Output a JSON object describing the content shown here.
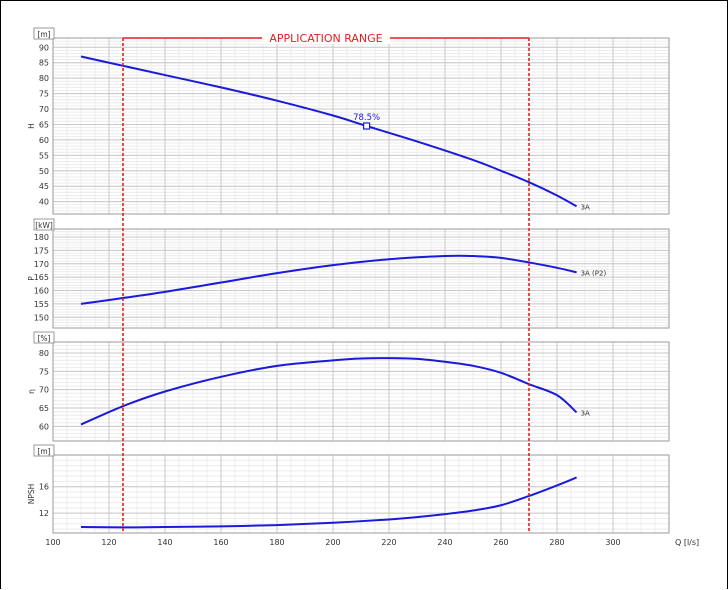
{
  "annotations": {
    "application_range_label": "APPLICATION RANGE",
    "best_efficiency_label": "78.5%",
    "application_range_q": [
      125,
      270
    ],
    "best_efficiency_point": {
      "q": 212,
      "h": 64.5
    }
  },
  "colors": {
    "curve": "#1a1adb",
    "range": "#e02020",
    "grid_major": "#c8c8c8",
    "grid_minor": "#ececec",
    "axis_text": "#333333"
  },
  "x_axis": {
    "label": "Q [l/s]",
    "min": 100,
    "max": 320,
    "ticks": [
      100,
      120,
      140,
      160,
      180,
      200,
      220,
      240,
      260,
      280,
      300
    ]
  },
  "chart_data": [
    {
      "type": "line",
      "panel": "head",
      "unit": "[m]",
      "ylabel": "H",
      "ylim": [
        36,
        93
      ],
      "yticks": [
        40,
        45,
        50,
        55,
        60,
        65,
        70,
        75,
        80,
        85,
        90
      ],
      "series": [
        {
          "name": "3A",
          "x": [
            110,
            125,
            140,
            160,
            180,
            200,
            212,
            230,
            250,
            260,
            270,
            280,
            287
          ],
          "y": [
            87,
            84,
            81,
            77,
            72.7,
            67.9,
            64.5,
            59.5,
            53.5,
            50.0,
            46.3,
            42.0,
            38.5
          ]
        }
      ]
    },
    {
      "type": "line",
      "panel": "power",
      "unit": "[kW]",
      "ylabel": "P",
      "ylim": [
        146,
        183
      ],
      "yticks": [
        150,
        155,
        160,
        165,
        170,
        175,
        180
      ],
      "series": [
        {
          "name": "3A (P2)",
          "x": [
            110,
            125,
            140,
            160,
            180,
            200,
            220,
            240,
            250,
            260,
            270,
            280,
            287
          ],
          "y": [
            155,
            157.2,
            159.5,
            163.0,
            166.5,
            169.5,
            171.7,
            172.9,
            172.9,
            172.2,
            170.5,
            168.5,
            166.8
          ]
        }
      ]
    },
    {
      "type": "line",
      "panel": "efficiency",
      "unit": "[%]",
      "ylabel": "η",
      "ylim": [
        56,
        83
      ],
      "yticks": [
        60,
        65,
        70,
        75,
        80
      ],
      "series": [
        {
          "name": "3A",
          "x": [
            110,
            125,
            140,
            160,
            180,
            200,
            210,
            220,
            230,
            240,
            250,
            260,
            270,
            280,
            287
          ],
          "y": [
            60.5,
            65.5,
            69.5,
            73.5,
            76.5,
            78.0,
            78.5,
            78.6,
            78.4,
            77.6,
            76.5,
            74.6,
            71.5,
            68.5,
            63.8
          ]
        }
      ]
    },
    {
      "type": "line",
      "panel": "npsh",
      "unit": "[m]",
      "ylabel": "NPSH",
      "ylim": [
        9,
        20.8
      ],
      "yticks": [
        12,
        16
      ],
      "series": [
        {
          "name": "",
          "x": [
            110,
            125,
            140,
            160,
            180,
            200,
            220,
            230,
            240,
            250,
            260,
            270,
            280,
            287
          ],
          "y": [
            9.9,
            9.85,
            9.9,
            10.0,
            10.2,
            10.55,
            11.05,
            11.4,
            11.85,
            12.4,
            13.2,
            14.6,
            16.2,
            17.4
          ]
        }
      ]
    }
  ]
}
